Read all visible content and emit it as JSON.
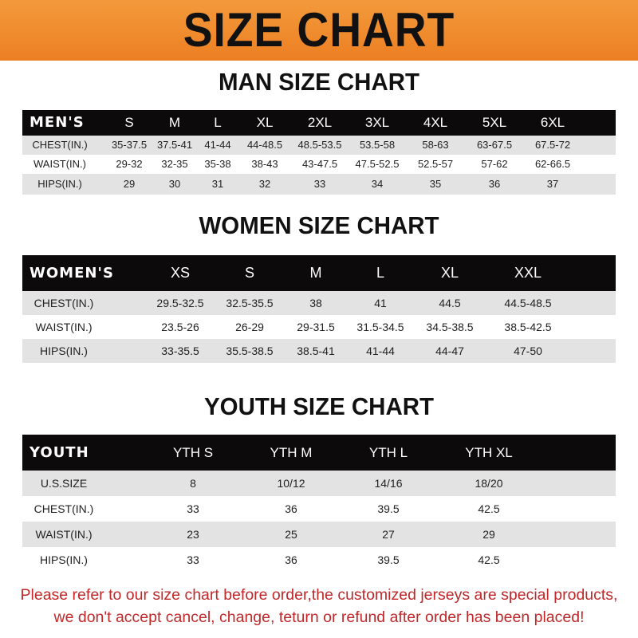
{
  "title": "SIZE CHART",
  "tables": [
    {
      "title": "MAN SIZE CHART",
      "header": [
        "MEN'S",
        "S",
        "M",
        "L",
        "XL",
        "2XL",
        "3XL",
        "4XL",
        "5XL",
        "6XL"
      ],
      "rows": [
        [
          "CHEST(IN.)",
          "35-37.5",
          "37.5-41",
          "41-44",
          "44-48.5",
          "48.5-53.5",
          "53.5-58",
          "58-63",
          "63-67.5",
          "67.5-72"
        ],
        [
          "WAIST(IN.)",
          "29-32",
          "32-35",
          "35-38",
          "38-43",
          "43-47.5",
          "47.5-52.5",
          "52.5-57",
          "57-62",
          "62-66.5"
        ],
        [
          "HIPS(IN.)",
          "29",
          "30",
          "31",
          "32",
          "33",
          "34",
          "35",
          "36",
          "37"
        ]
      ]
    },
    {
      "title": "WOMEN SIZE CHART",
      "header": [
        "WOMEN'S",
        "XS",
        "S",
        "M",
        "L",
        "XL",
        "XXL"
      ],
      "rows": [
        [
          "CHEST(IN.)",
          "29.5-32.5",
          "32.5-35.5",
          "38",
          "41",
          "44.5",
          "44.5-48.5"
        ],
        [
          "WAIST(IN.)",
          "23.5-26",
          "26-29",
          "29-31.5",
          "31.5-34.5",
          "34.5-38.5",
          "38.5-42.5"
        ],
        [
          "HIPS(IN.)",
          "33-35.5",
          "35.5-38.5",
          "38.5-41",
          "41-44",
          "44-47",
          "47-50"
        ]
      ]
    },
    {
      "title": "YOUTH SIZE CHART",
      "header": [
        "YOUTH",
        "YTH S",
        "YTH M",
        "YTH L",
        "YTH XL"
      ],
      "rows": [
        [
          "U.S.SIZE",
          "8",
          "10/12",
          "14/16",
          "18/20"
        ],
        [
          "CHEST(IN.)",
          "33",
          "36",
          "39.5",
          "42.5"
        ],
        [
          "WAIST(IN.)",
          "23",
          "25",
          "27",
          "29"
        ],
        [
          "HIPS(IN.)",
          "33",
          "36",
          "39.5",
          "42.5"
        ]
      ]
    }
  ],
  "footer": {
    "line1": "Please refer to our size chart before order,the customized jerseys are special products,",
    "line2": "we don't accept cancel, change, teturn or refund after order has been placed!"
  },
  "colors": {
    "banner": "#ec7f22",
    "header_row": "#0c0a0a",
    "stripe": "#e3e3e3",
    "notice": "#c0282a"
  }
}
